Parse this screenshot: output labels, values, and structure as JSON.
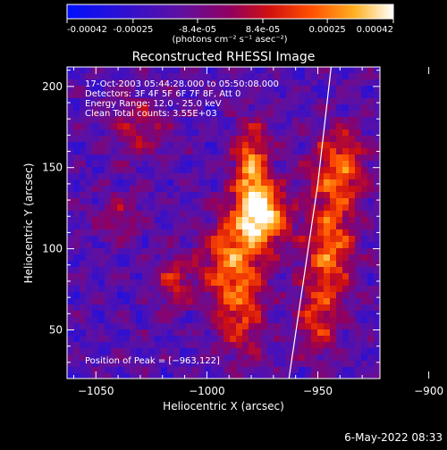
{
  "colorbar": {
    "tick_labels": [
      "-0.00042",
      "-0.00025",
      "-8.4e-05",
      "8.4e-05",
      "0.00025",
      "0.00042"
    ],
    "unit_label": "(photons cm⁻² s⁻¹ asec⁻²)",
    "range": [
      -0.00042,
      0.00042
    ]
  },
  "chart_data": {
    "type": "heatmap",
    "title": "Reconstructed RHESSI Image",
    "xlabel": "Heliocentric X (arcsec)",
    "ylabel": "Heliocentric Y (arcsec)",
    "xlim": [
      -1063,
      -922
    ],
    "ylim": [
      20,
      212
    ],
    "x_ticks": [
      -1050,
      -1000,
      -950,
      -900
    ],
    "y_ticks": [
      50,
      100,
      150,
      200
    ],
    "x_tick_labels": [
      "−1050",
      "−1000",
      "−950",
      "−900"
    ],
    "y_tick_labels": [
      "50",
      "100",
      "150",
      "200"
    ],
    "info_lines": [
      "17-Oct-2003 05:44:28.000 to 05:50:08.000",
      "Detectors: 3F 4F 5F 6F 7F 8F, Att 0",
      "Energy Range: 12.0 - 25.0 keV",
      "Clean     Total counts: 3.55E+03"
    ],
    "peak_label": "Position of Peak = [−963,122]",
    "peak": [
      -963,
      122
    ],
    "limb_line": [
      [
        -963,
        20
      ],
      [
        -950,
        140
      ],
      [
        -944,
        212
      ]
    ],
    "colormap": "blue-purple-red-yellow-white",
    "sources": [
      {
        "x": -975,
        "y": 120,
        "sigma_x": 8,
        "sigma_y": 14,
        "amp": 1.0
      },
      {
        "x": -980,
        "y": 150,
        "sigma_x": 6,
        "sigma_y": 20,
        "amp": 0.75
      },
      {
        "x": -990,
        "y": 95,
        "sigma_x": 10,
        "sigma_y": 18,
        "amp": 0.6
      },
      {
        "x": -985,
        "y": 60,
        "sigma_x": 8,
        "sigma_y": 20,
        "amp": 0.55
      },
      {
        "x": -940,
        "y": 150,
        "sigma_x": 9,
        "sigma_y": 18,
        "amp": 0.65
      },
      {
        "x": -945,
        "y": 100,
        "sigma_x": 8,
        "sigma_y": 22,
        "amp": 0.7
      },
      {
        "x": -950,
        "y": 55,
        "sigma_x": 7,
        "sigma_y": 16,
        "amp": 0.5
      },
      {
        "x": -1015,
        "y": 80,
        "sigma_x": 6,
        "sigma_y": 12,
        "amp": 0.45
      },
      {
        "x": -1030,
        "y": 175,
        "sigma_x": 10,
        "sigma_y": 14,
        "amp": 0.35
      },
      {
        "x": -1040,
        "y": 120,
        "sigma_x": 7,
        "sigma_y": 12,
        "amp": 0.3
      }
    ]
  },
  "footer": {
    "date": "6-May-2022 08:33"
  }
}
